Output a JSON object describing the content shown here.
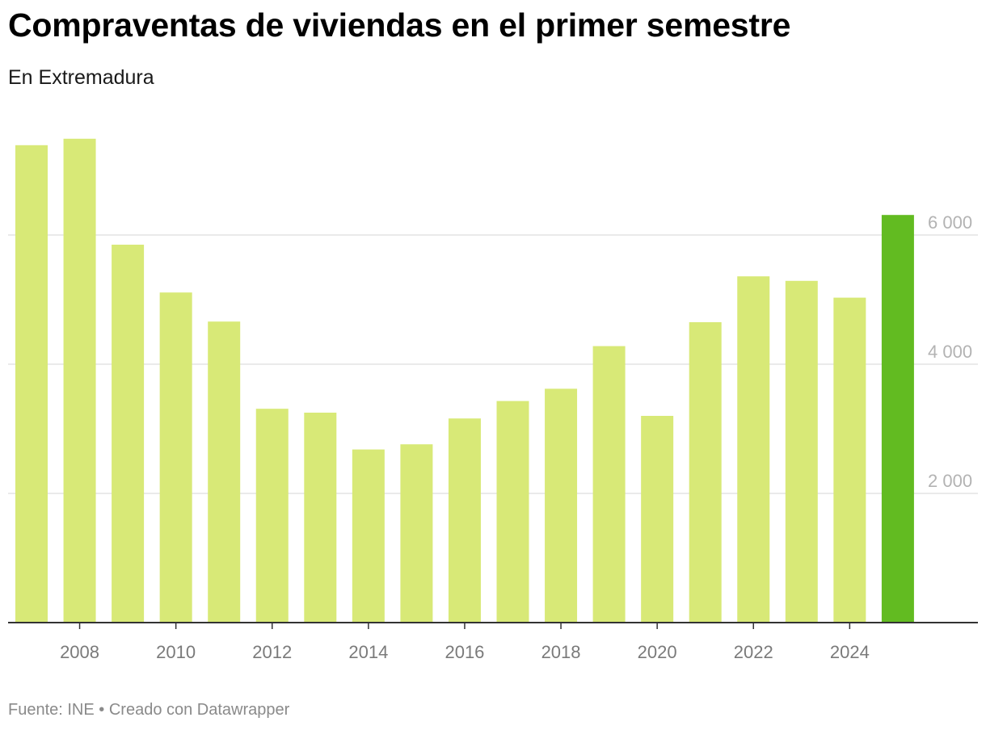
{
  "header": {
    "title": "Compraventas de viviendas en el primer semestre",
    "subtitle": "En Extremadura"
  },
  "footer": {
    "source": "Fuente: INE",
    "separator": " • ",
    "credit": "Creado con Datawrapper"
  },
  "colors": {
    "bar": "#d8e977",
    "highlight": "#62bb21",
    "grid": "#e3e3e3",
    "axis": "#333333"
  },
  "chart_data": {
    "type": "bar",
    "categories": [
      "2007",
      "2008",
      "2009",
      "2010",
      "2011",
      "2012",
      "2013",
      "2014",
      "2015",
      "2016",
      "2017",
      "2018",
      "2019",
      "2020",
      "2021",
      "2022",
      "2023",
      "2024",
      "2025"
    ],
    "values": [
      7390,
      7490,
      5850,
      5110,
      4660,
      3310,
      3250,
      2680,
      2760,
      3160,
      3430,
      3620,
      4280,
      3200,
      4650,
      5360,
      5290,
      5030,
      6310
    ],
    "highlight_category": "2025",
    "x_tick_labels": [
      "2008",
      "2010",
      "2012",
      "2014",
      "2016",
      "2018",
      "2020",
      "2022",
      "2024"
    ],
    "y_ticks": [
      2000,
      4000,
      6000
    ],
    "y_tick_labels": [
      "2 000",
      "4 000",
      "6 000"
    ],
    "ylim": [
      0,
      7500
    ],
    "y_axis_position": "right",
    "grid": true,
    "xlabel": "",
    "ylabel": ""
  }
}
